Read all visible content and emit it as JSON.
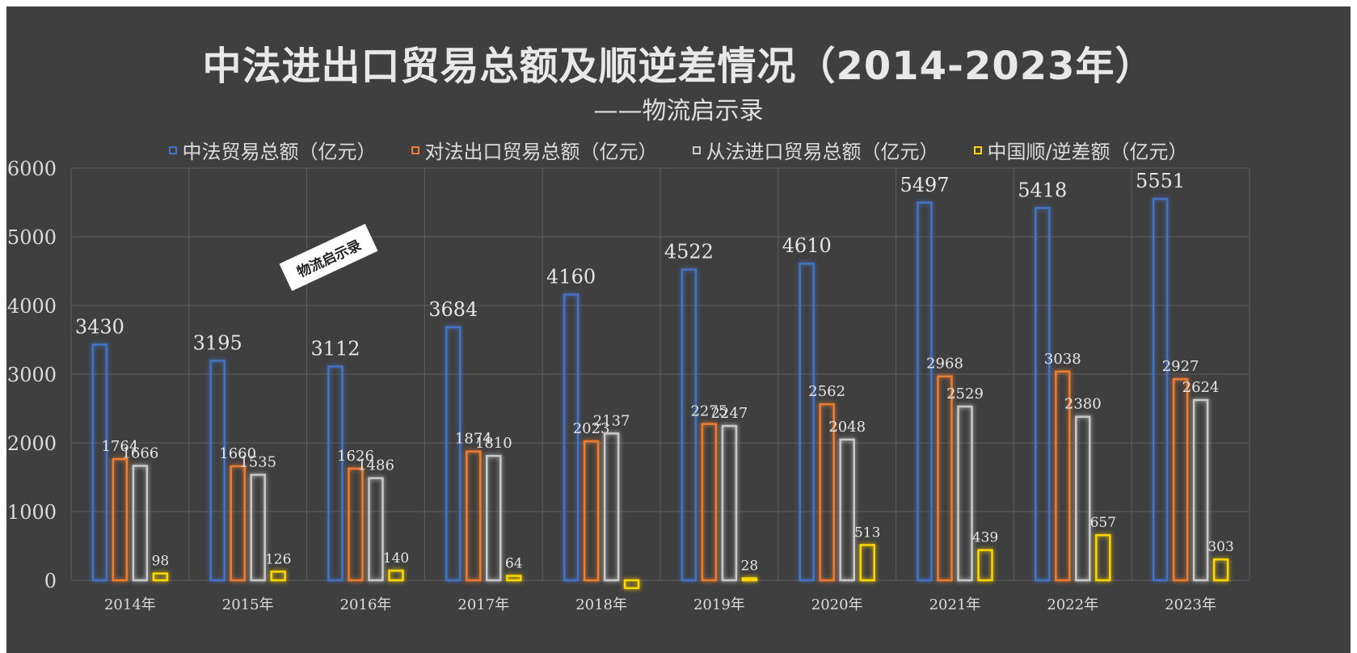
{
  "chart_data": {
    "type": "bar",
    "title": "中法进出口贸易总额及顺逆差情况（2014-2023年）",
    "subtitle": "——物流启示录",
    "watermark": "物流启示录",
    "categories": [
      "2014年",
      "2015年",
      "2016年",
      "2017年",
      "2018年",
      "2019年",
      "2020年",
      "2021年",
      "2022年",
      "2023年"
    ],
    "series": [
      {
        "name": "中法贸易总额（亿元）",
        "color": "#4472c4",
        "values": [
          3430,
          3195,
          3112,
          3684,
          4160,
          4522,
          4610,
          5497,
          5418,
          5551
        ],
        "labels": [
          "3430",
          "3195",
          "3112",
          "3684",
          "4160",
          "4522",
          "4610",
          "5497",
          "5418",
          "5551"
        ]
      },
      {
        "name": "对法出口贸易总额（亿元）",
        "color": "#ed7d31",
        "values": [
          1764,
          1660,
          1626,
          1874,
          2023,
          2275,
          2562,
          2968,
          3038,
          2927
        ],
        "labels": [
          "1764",
          "1660",
          "1626",
          "1874",
          "2023",
          "2275",
          "2562",
          "2968",
          "3038",
          "2927"
        ]
      },
      {
        "name": "从法进口贸易总额（亿元）",
        "color": "#c9c9c9",
        "values": [
          1666,
          1535,
          1486,
          1810,
          2137,
          2247,
          2048,
          2529,
          2380,
          2624
        ],
        "labels": [
          "1666",
          "1535",
          "1486",
          "1810",
          "2137",
          "2247",
          "2048",
          "2529",
          "2380",
          "2624"
        ]
      },
      {
        "name": "中国顺/逆差额（亿元）",
        "color": "#ffd700",
        "values": [
          98,
          126,
          140,
          64,
          -114,
          28,
          513,
          439,
          657,
          303
        ],
        "labels": [
          "98",
          "126",
          "140",
          "64",
          "",
          "28",
          "513",
          "439",
          "657",
          "303"
        ]
      }
    ],
    "y_ticks": [
      "0",
      "1000",
      "2000",
      "3000",
      "4000",
      "5000",
      "6000"
    ],
    "ylim": [
      0,
      6000
    ],
    "grid": true,
    "legend_position": "top"
  }
}
